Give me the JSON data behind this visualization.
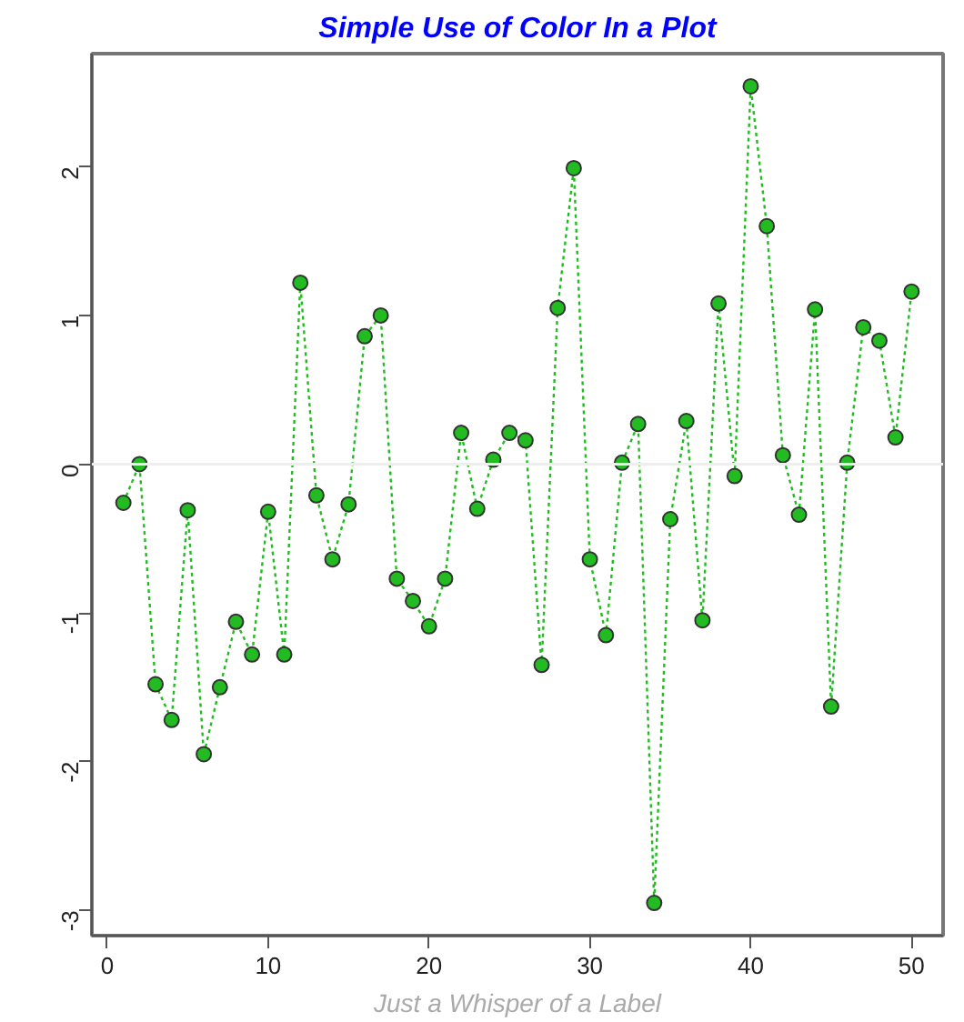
{
  "chart_data": {
    "type": "line",
    "title": "Simple Use of Color In a Plot",
    "xlabel": "Just a Whisper of a Label",
    "x": [
      1,
      2,
      3,
      4,
      5,
      6,
      7,
      8,
      9,
      10,
      11,
      12,
      13,
      14,
      15,
      16,
      17,
      18,
      19,
      20,
      21,
      22,
      23,
      24,
      25,
      26,
      27,
      28,
      29,
      30,
      31,
      32,
      33,
      34,
      35,
      36,
      37,
      38,
      39,
      40,
      41,
      42,
      43,
      44,
      45,
      46,
      47,
      48,
      49,
      50
    ],
    "series": [
      {
        "color": "#22bb22",
        "values": [
          -0.26,
          0.0,
          -1.48,
          -1.72,
          -0.31,
          -1.95,
          -1.5,
          -1.06,
          -1.28,
          -0.32,
          -1.28,
          1.22,
          -0.21,
          -0.64,
          -0.27,
          0.86,
          1.0,
          -0.77,
          -0.92,
          -1.09,
          -0.77,
          0.21,
          -0.3,
          0.03,
          0.21,
          0.16,
          -1.35,
          1.05,
          1.99,
          -0.64,
          -1.15,
          0.01,
          0.27,
          -2.95,
          -0.37,
          0.29,
          -1.05,
          1.08,
          -0.08,
          2.54,
          1.6,
          0.06,
          -0.34,
          1.04,
          -1.63,
          0.01,
          0.92,
          0.83,
          0.18,
          1.16
        ]
      }
    ],
    "xlim": [
      -0.96,
      51.96
    ],
    "ylim": [
      -3.17,
      2.76
    ],
    "xticks": [
      0,
      10,
      20,
      30,
      40,
      50
    ],
    "yticks": [
      -3,
      -2,
      -1,
      0,
      1,
      2
    ],
    "ref_lines": [
      {
        "axis": "y",
        "value": 0,
        "color": "#eeeeee"
      }
    ],
    "grid": false,
    "marker": "circle",
    "line_style": "dotted"
  }
}
